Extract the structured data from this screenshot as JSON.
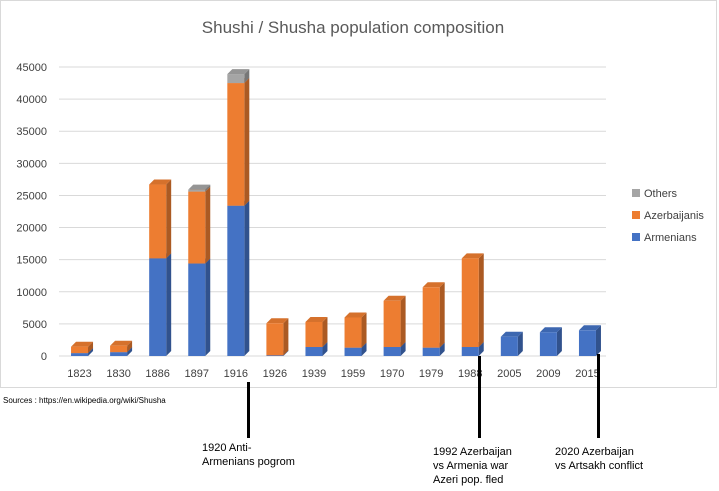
{
  "chart_data": {
    "type": "bar",
    "stacked": true,
    "style": "3d-column",
    "title": "Shushi / Shusha population composition",
    "xlabel": "",
    "ylabel": "",
    "ylim": [
      0,
      45000
    ],
    "yticks": [
      0,
      5000,
      10000,
      15000,
      20000,
      25000,
      30000,
      35000,
      40000,
      45000
    ],
    "grid": true,
    "legend_position": "right",
    "categories": [
      "1823",
      "1830",
      "1886",
      "1897",
      "1916",
      "1926",
      "1939",
      "1959",
      "1970",
      "1979",
      "1988",
      "2005",
      "2009",
      "2015"
    ],
    "series": [
      {
        "name": "Armenians",
        "color": "#4472c4",
        "values": [
          450,
          600,
          15200,
          14400,
          23400,
          100,
          1400,
          1300,
          1400,
          1300,
          1400,
          3000,
          3700,
          4000
        ]
      },
      {
        "name": "Azerbaijanis",
        "color": "#ed7d31",
        "values": [
          1000,
          1000,
          11500,
          11200,
          19100,
          5000,
          3900,
          4700,
          7200,
          9400,
          13800,
          0,
          0,
          0
        ]
      },
      {
        "name": "Others",
        "color": "#a5a5a5",
        "values": [
          0,
          0,
          0,
          300,
          1400,
          0,
          0,
          0,
          0,
          0,
          0,
          0,
          0,
          0
        ]
      }
    ],
    "legend_order": [
      "Others",
      "Azerbaijanis",
      "Armenians"
    ]
  },
  "sources": "Sources : https://en.wikipedia.org/wiki/Shusha",
  "annotations": [
    {
      "text": "1920 Anti-\nArmenians pogrom"
    },
    {
      "text": "1992 Azerbaijan\nvs Armenia war\nAzeri pop. fled"
    },
    {
      "text": "2020 Azerbaijan\nvs Artsakh conflict"
    }
  ]
}
